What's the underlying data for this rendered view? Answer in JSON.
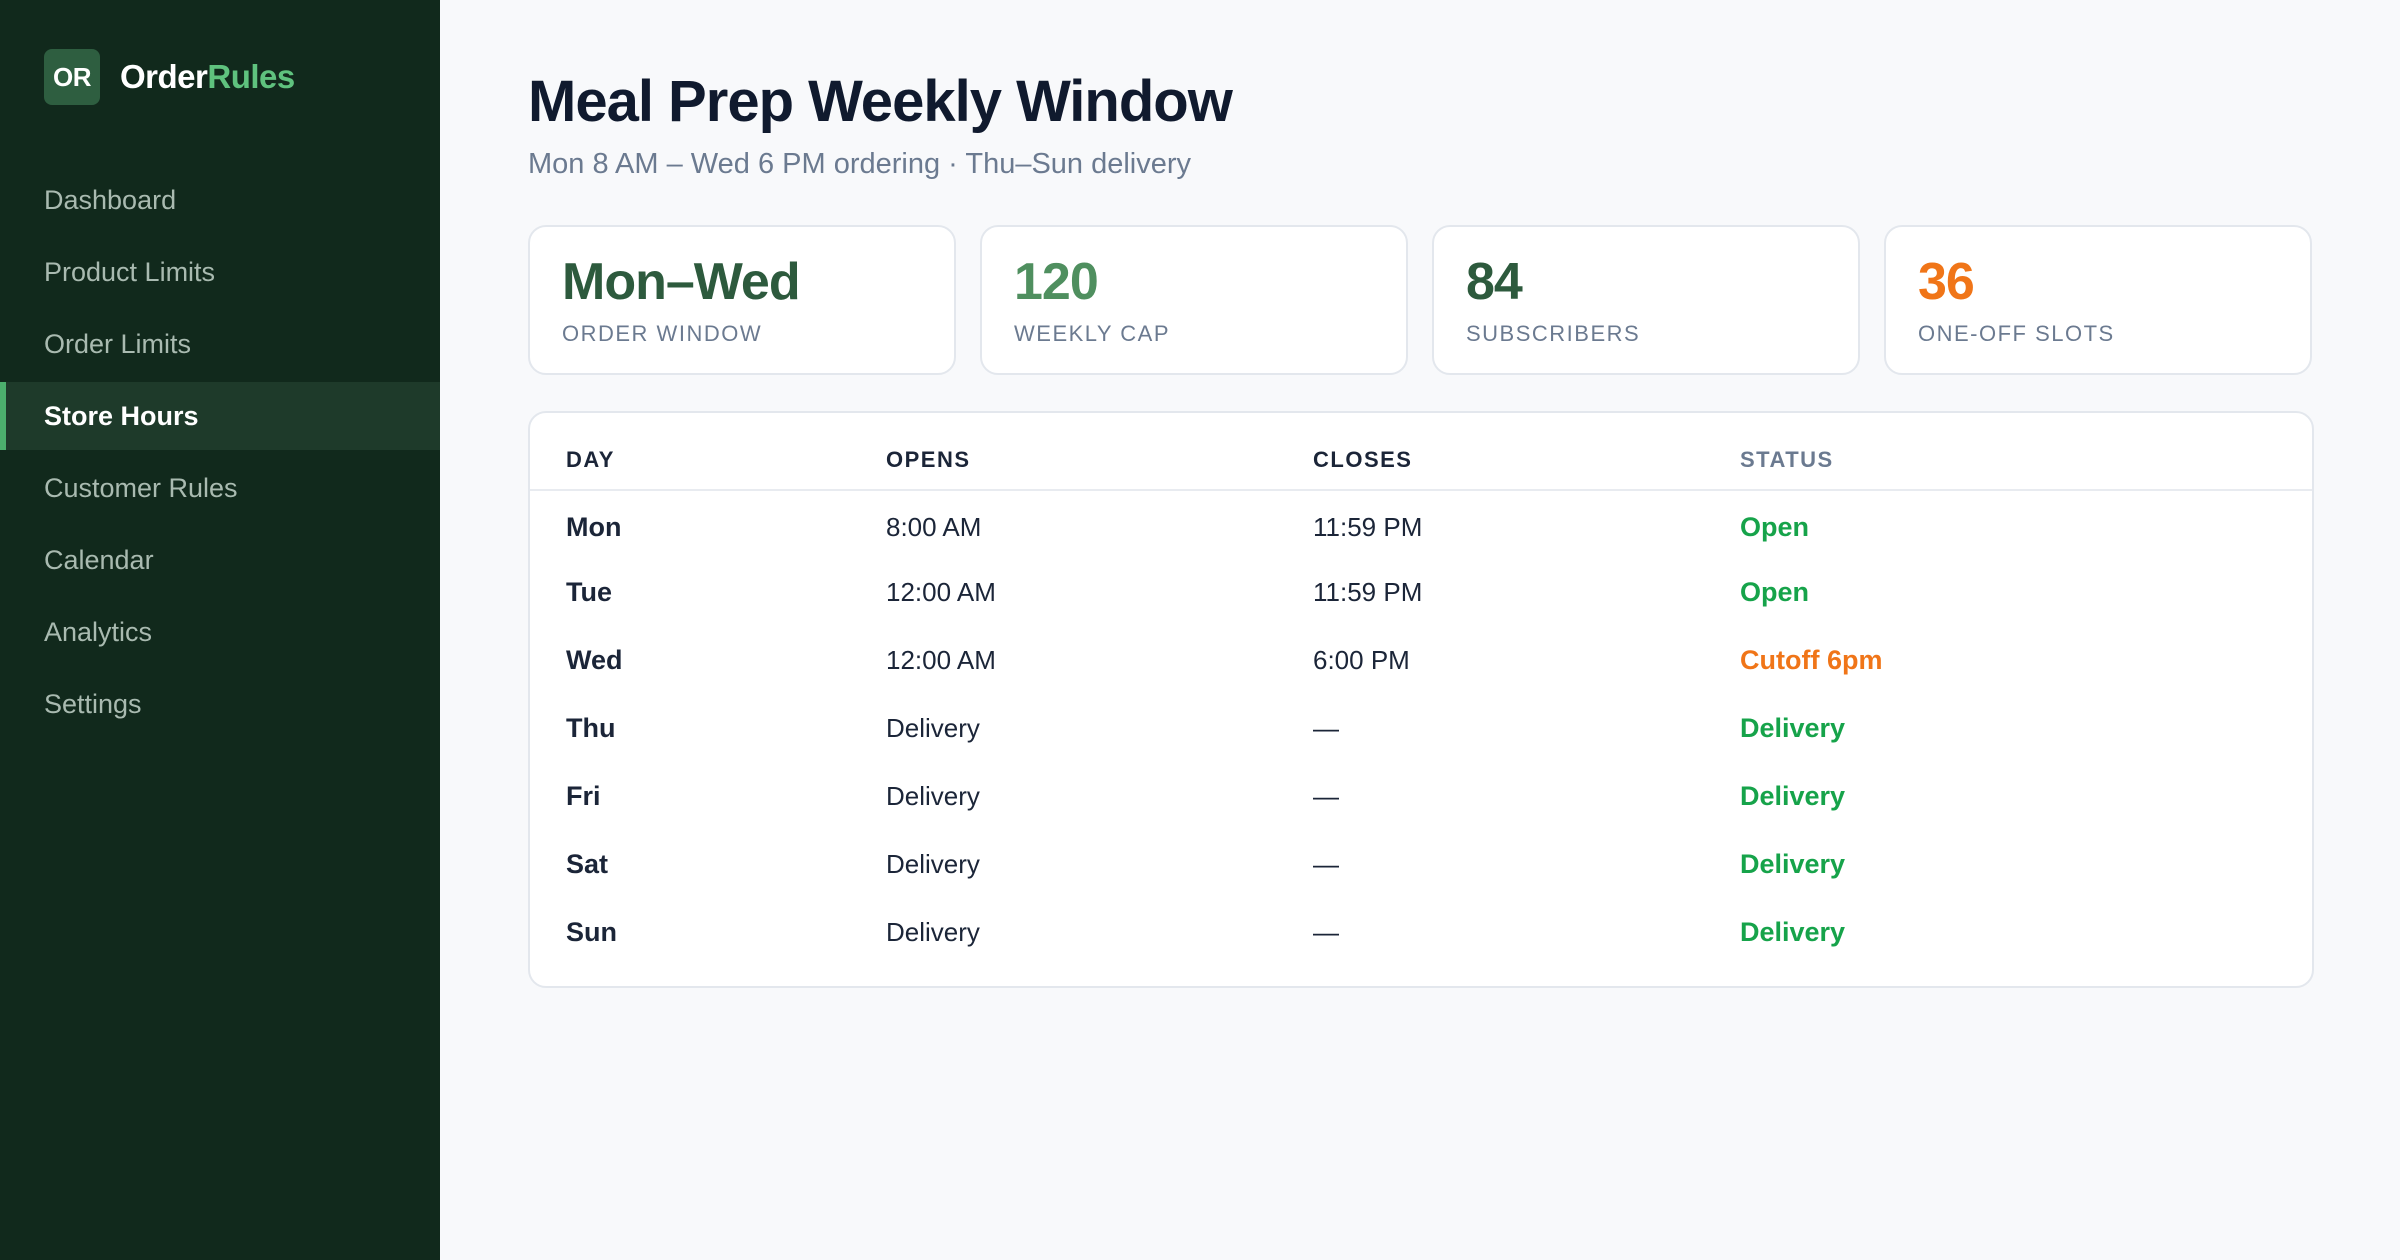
{
  "brand": {
    "logo": "OR",
    "name_main": "Order",
    "name_accent": "Rules"
  },
  "sidebar": {
    "items": [
      {
        "label": "Dashboard",
        "active": false
      },
      {
        "label": "Product Limits",
        "active": false
      },
      {
        "label": "Order Limits",
        "active": false
      },
      {
        "label": "Store Hours",
        "active": true
      },
      {
        "label": "Customer Rules",
        "active": false
      },
      {
        "label": "Calendar",
        "active": false
      },
      {
        "label": "Analytics",
        "active": false
      },
      {
        "label": "Settings",
        "active": false
      }
    ]
  },
  "header": {
    "title": "Meal Prep Weekly Window",
    "subtitle": "Mon 8 AM – Wed 6 PM ordering · Thu–Sun delivery"
  },
  "stats": [
    {
      "value": "Mon–Wed",
      "label": "ORDER WINDOW",
      "color": "#2d5a3d"
    },
    {
      "value": "120",
      "label": "WEEKLY CAP",
      "color": "#4f8f5f"
    },
    {
      "value": "84",
      "label": "SUBSCRIBERS",
      "color": "#2d5a3d"
    },
    {
      "value": "36",
      "label": "ONE-OFF SLOTS",
      "color": "#f07518"
    }
  ],
  "table": {
    "headers": {
      "day": "DAY",
      "opens": "OPENS",
      "closes": "CLOSES",
      "status": "STATUS"
    },
    "rows": [
      {
        "day": "Mon",
        "opens": "8:00 AM",
        "closes": "11:59 PM",
        "status": "Open",
        "status_color": "#16a34a"
      },
      {
        "day": "Tue",
        "opens": "12:00 AM",
        "closes": "11:59 PM",
        "status": "Open",
        "status_color": "#16a34a"
      },
      {
        "day": "Wed",
        "opens": "12:00 AM",
        "closes": "6:00 PM",
        "status": "Cutoff 6pm",
        "status_color": "#f07518"
      },
      {
        "day": "Thu",
        "opens": "Delivery",
        "closes": "—",
        "status": "Delivery",
        "status_color": "#16a34a"
      },
      {
        "day": "Fri",
        "opens": "Delivery",
        "closes": "—",
        "status": "Delivery",
        "status_color": "#16a34a"
      },
      {
        "day": "Sat",
        "opens": "Delivery",
        "closes": "—",
        "status": "Delivery",
        "status_color": "#16a34a"
      },
      {
        "day": "Sun",
        "opens": "Delivery",
        "closes": "—",
        "status": "Delivery",
        "status_color": "#16a34a"
      }
    ]
  }
}
